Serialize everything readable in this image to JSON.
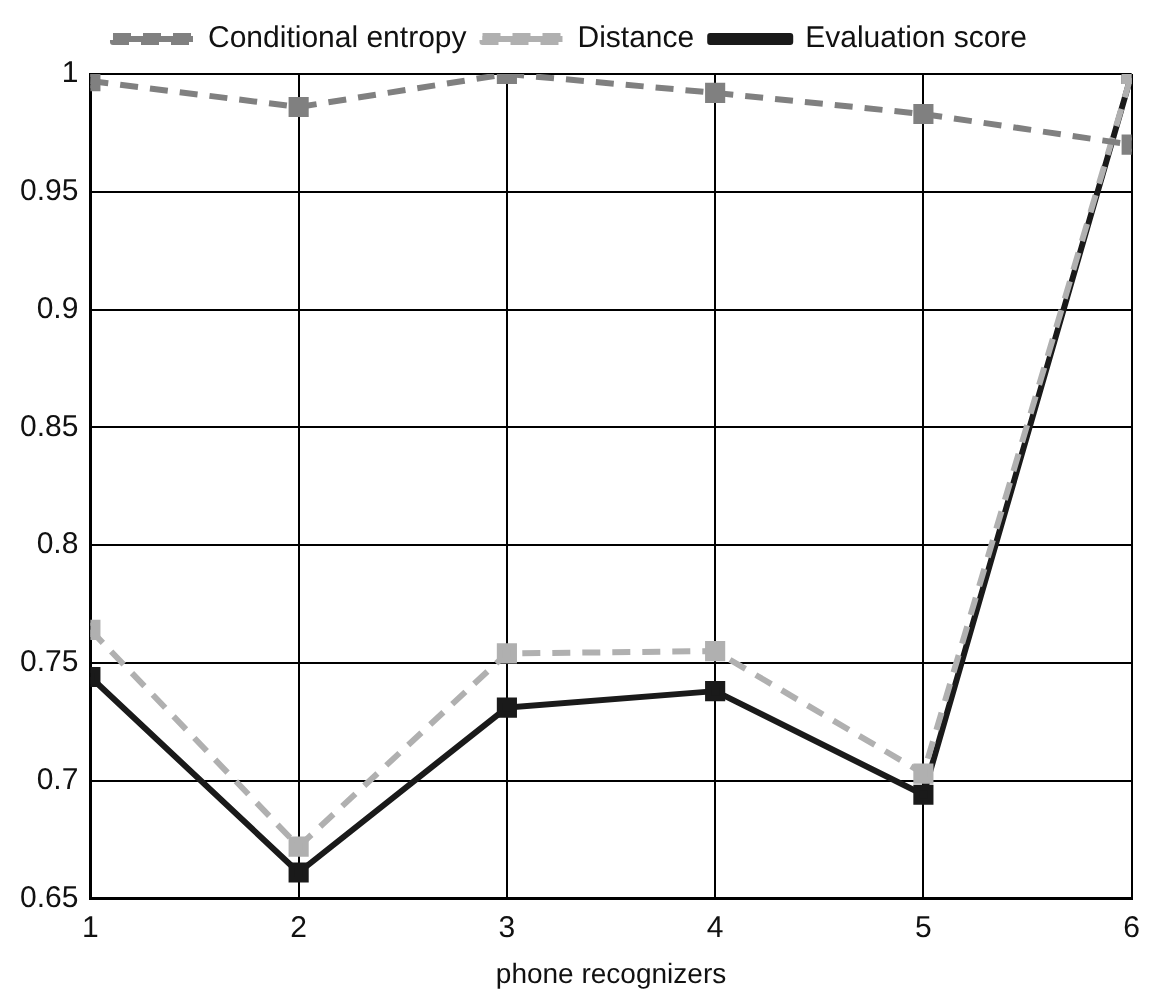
{
  "chart_data": {
    "type": "line",
    "xlabel": "phone recognizers",
    "x": [
      1,
      2,
      3,
      4,
      5,
      6
    ],
    "xlim": [
      1,
      6
    ],
    "xticks": [
      1,
      2,
      3,
      4,
      5,
      6
    ],
    "ylim": [
      0.65,
      1
    ],
    "yticks": [
      0.65,
      0.7,
      0.75,
      0.8,
      0.85,
      0.9,
      0.95,
      1
    ],
    "grid": true,
    "legend": "top",
    "marker": "square",
    "series": [
      {
        "name": "Conditional entropy",
        "color": "#808080",
        "line_style": "dashed",
        "values": [
          0.997,
          0.986,
          1.0,
          0.992,
          0.983,
          0.97
        ]
      },
      {
        "name": "Distance",
        "color": "#b0b0b0",
        "line_style": "dashed",
        "values": [
          0.764,
          0.672,
          0.754,
          0.755,
          0.703,
          1.0
        ]
      },
      {
        "name": "Evaluation score",
        "color": "#1a1a1a",
        "line_style": "solid",
        "values": [
          0.744,
          0.661,
          0.731,
          0.738,
          0.694,
          1.0
        ]
      }
    ]
  }
}
